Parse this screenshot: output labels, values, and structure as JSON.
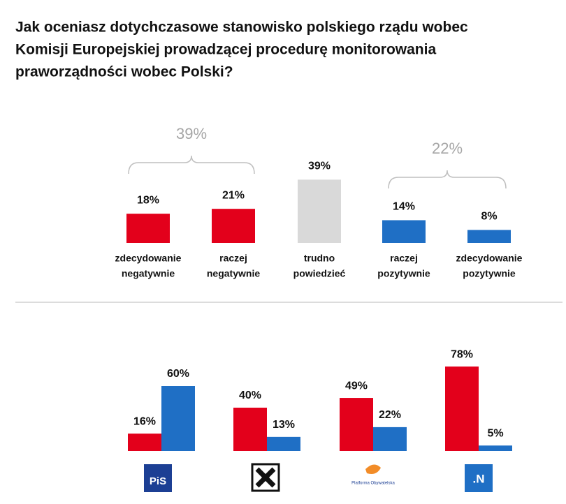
{
  "chart_data": [
    {
      "type": "bar",
      "title": [
        "Jak oceniasz dotychczasowe stanowisko polskiego rządu wobec",
        "Komisji Europejskiej prowadzącej procedurę monitorowania",
        "praworządności wobec Polski?"
      ],
      "categories": [
        [
          "zdecydowanie",
          "negatywnie"
        ],
        [
          "raczej",
          "negatywnie"
        ],
        [
          "trudno",
          "powiedzieć"
        ],
        [
          "raczej",
          "pozytywnie"
        ],
        [
          "zdecydowanie",
          "pozytywnie"
        ]
      ],
      "values": [
        18,
        21,
        39,
        14,
        8
      ],
      "value_labels": [
        "18%",
        "21%",
        "39%",
        "14%",
        "8%"
      ],
      "colors": [
        "#e3001b",
        "#e3001b",
        "#d9d9d9",
        "#1f6fc5",
        "#1f6fc5"
      ],
      "annotations": [
        "39%",
        "22%"
      ],
      "ylim": [
        0,
        40
      ]
    },
    {
      "type": "grouped-bar",
      "categories": [
        "PiS",
        null,
        "Platforma Obywatelska",
        ".N"
      ],
      "series": [
        {
          "color": "#e3001b",
          "values": [
            16,
            40,
            49,
            78
          ],
          "value_labels": [
            "16%",
            "40%",
            "49%",
            "78%"
          ]
        },
        {
          "color": "#1f6fc5",
          "values": [
            60,
            13,
            22,
            5
          ],
          "value_labels": [
            "60%",
            "13%",
            "22%",
            "5%"
          ]
        }
      ],
      "ylim": [
        0,
        80
      ]
    }
  ]
}
